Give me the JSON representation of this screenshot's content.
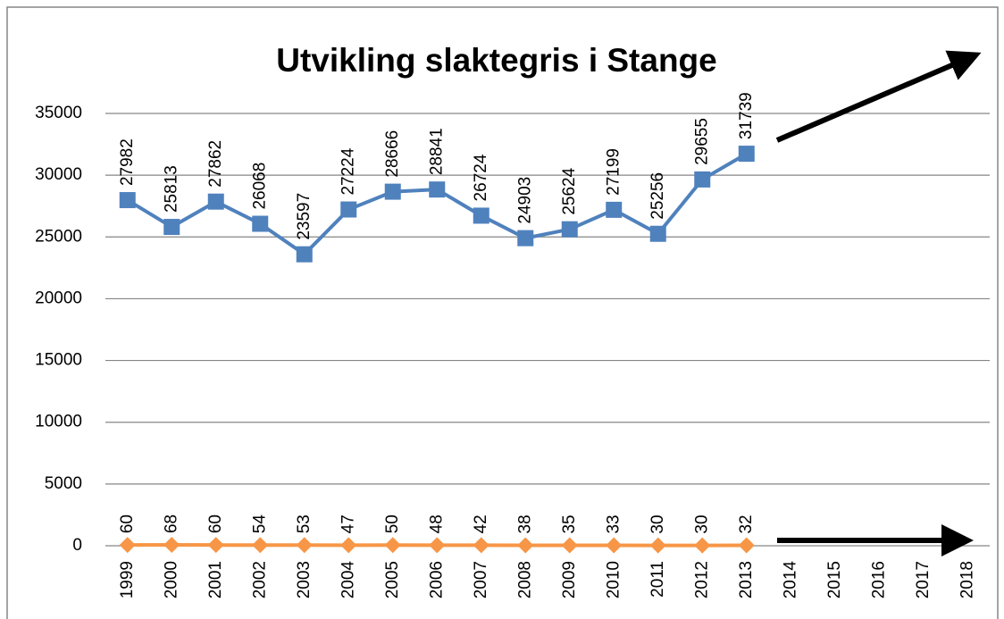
{
  "chart_data": {
    "type": "line",
    "title": "Utvikling slaktegris i Stange",
    "categories": [
      "1999",
      "2000",
      "2001",
      "2002",
      "2003",
      "2004",
      "2005",
      "2006",
      "2007",
      "2008",
      "2009",
      "2010",
      "2011",
      "2012",
      "2013",
      "2014",
      "2015",
      "2016",
      "2017",
      "2018"
    ],
    "series": [
      {
        "color": "#4f81bd",
        "marker": "square",
        "values": [
          27982,
          25813,
          27862,
          26068,
          23597,
          27224,
          28666,
          28841,
          26724,
          24903,
          25624,
          27199,
          25256,
          29655,
          31739,
          null,
          null,
          null,
          null,
          null
        ]
      },
      {
        "color": "#f79646",
        "marker": "diamond",
        "values": [
          60,
          68,
          60,
          54,
          53,
          47,
          50,
          48,
          42,
          38,
          35,
          33,
          30,
          30,
          32,
          null,
          null,
          null,
          null,
          null
        ]
      }
    ],
    "ylim": [
      0,
      35000
    ],
    "yticks": [
      0,
      5000,
      10000,
      15000,
      20000,
      25000,
      30000,
      35000
    ],
    "grid": true
  }
}
